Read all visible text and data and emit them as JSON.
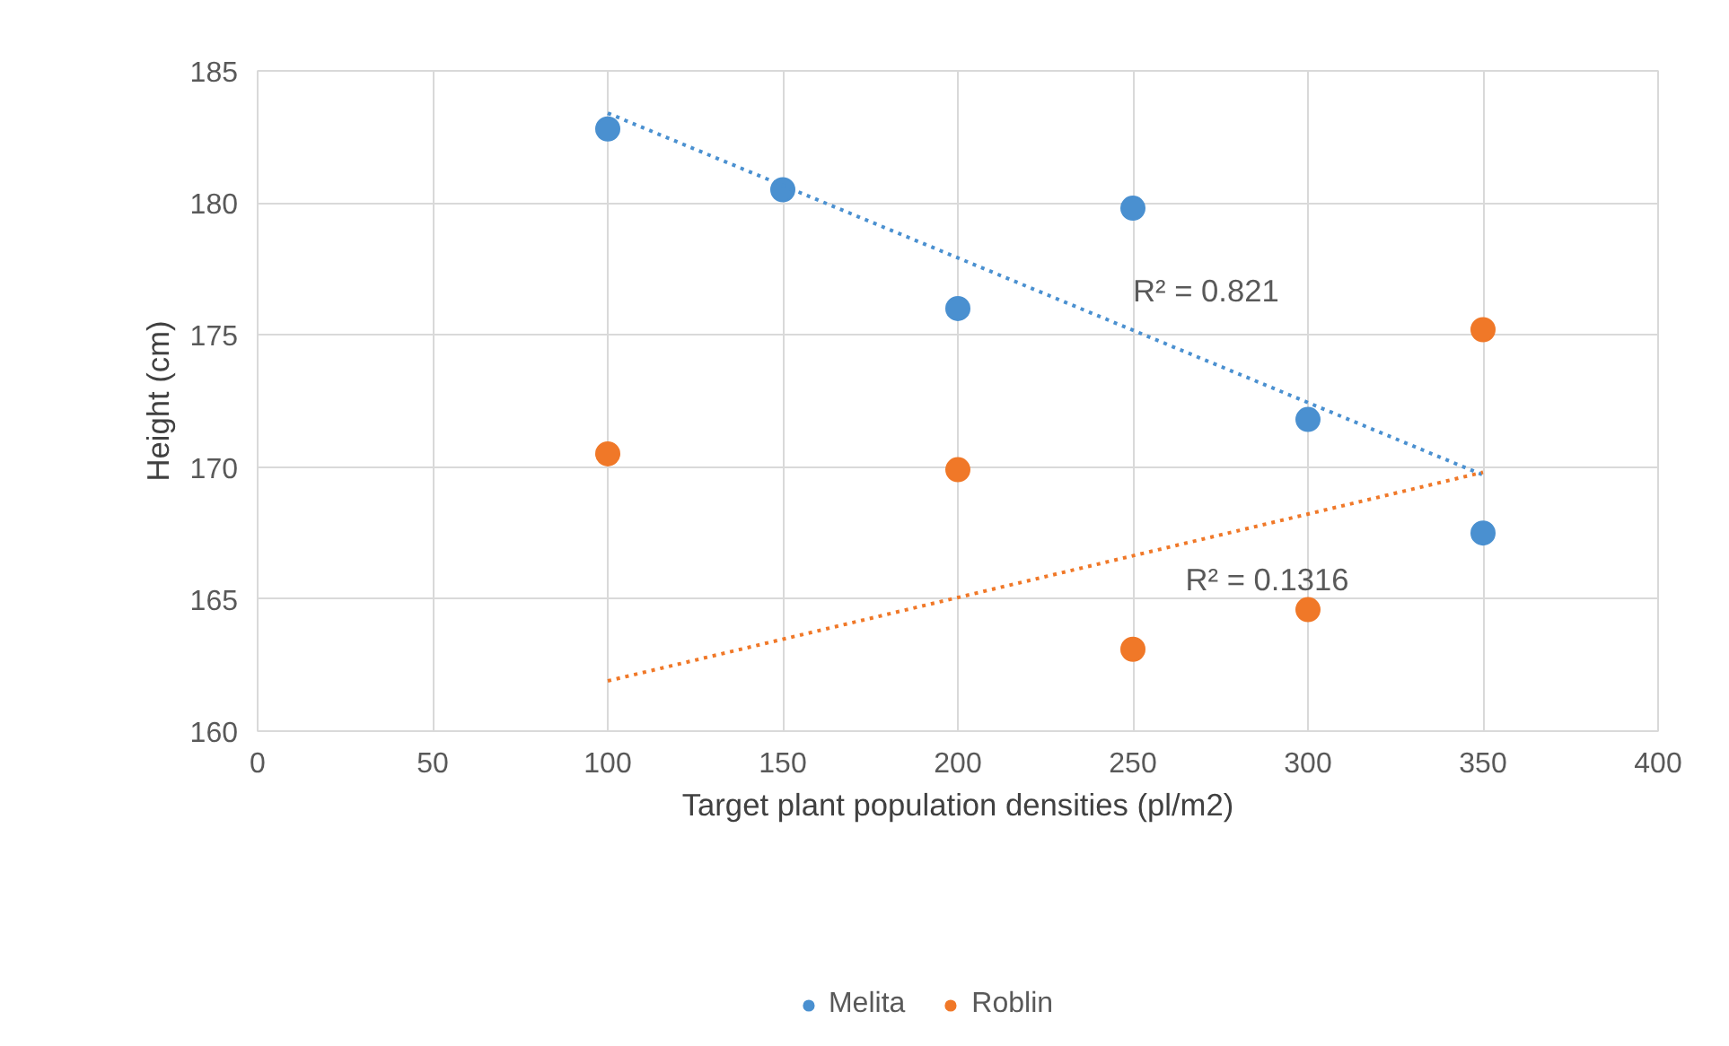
{
  "chart_data": {
    "type": "scatter",
    "xlabel": "Target plant population densities (pl/m2)",
    "ylabel": "Height (cm)",
    "xlim": [
      0,
      400
    ],
    "ylim": [
      160,
      185
    ],
    "xticks": [
      0,
      50,
      100,
      150,
      200,
      250,
      300,
      350,
      400
    ],
    "yticks": [
      160,
      165,
      170,
      175,
      180,
      185
    ],
    "grid": true,
    "legend": "bottom",
    "marker": "circle",
    "series": [
      {
        "name": "Melita",
        "color": "#4a90d0",
        "x": [
          100,
          150,
          200,
          250,
          300,
          350
        ],
        "values": [
          182.8,
          180.5,
          176.0,
          179.8,
          171.8,
          167.5
        ]
      },
      {
        "name": "Roblin",
        "color": "#f07828",
        "x": [
          100,
          200,
          250,
          300,
          350
        ],
        "values": [
          170.5,
          169.9,
          163.1,
          164.6,
          175.2
        ]
      },
      {
        "type": "line",
        "line_style": "dotted",
        "marker": "none",
        "color": "#4a90d0",
        "x": [
          100,
          350
        ],
        "values": [
          183.4,
          169.7
        ]
      },
      {
        "type": "line",
        "line_style": "dotted",
        "marker": "none",
        "color": "#f07828",
        "x": [
          100,
          350
        ],
        "values": [
          161.9,
          169.8
        ]
      }
    ],
    "annotations": [
      "R² = 0.821",
      "R² = 0.1316"
    ]
  }
}
